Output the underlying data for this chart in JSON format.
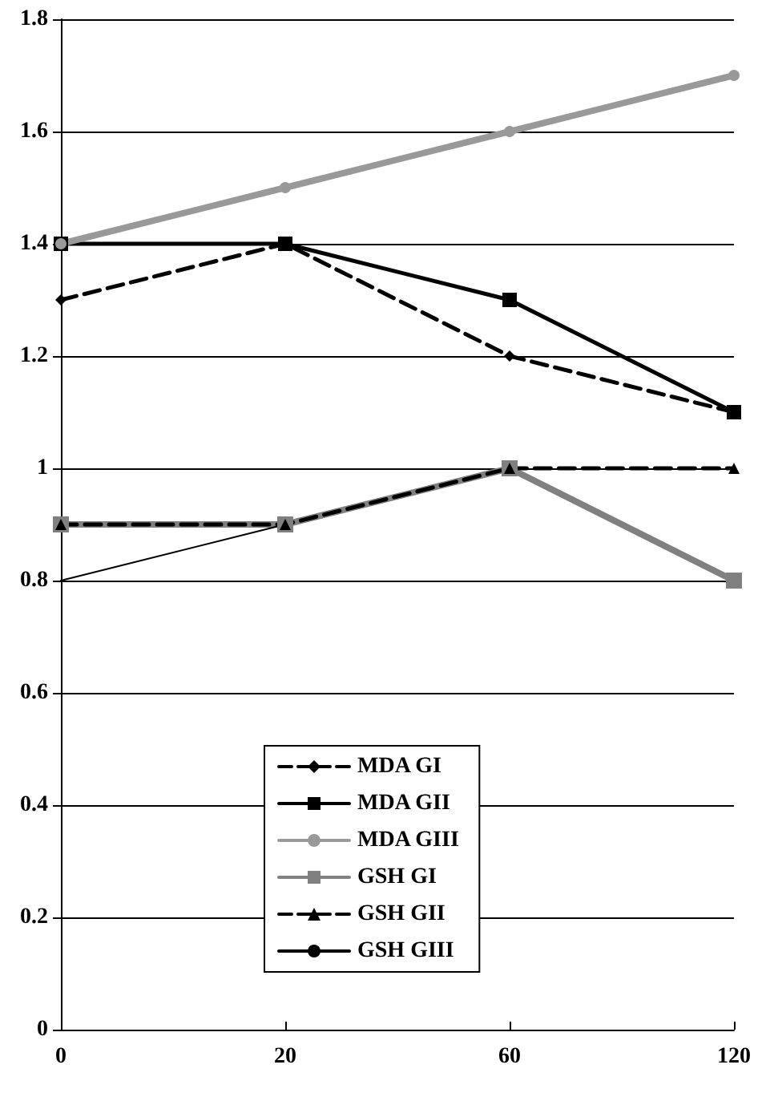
{
  "chart_data": {
    "type": "line",
    "categories": [
      "0",
      "20",
      "60",
      "120"
    ],
    "series": [
      {
        "name": "MDA GI",
        "color": "#000000",
        "values": [
          1.3,
          1.4,
          1.2,
          1.1
        ],
        "marker": "diamond",
        "line_style": "dashed"
      },
      {
        "name": "MDA GII",
        "color": "#000000",
        "values": [
          1.4,
          1.4,
          1.3,
          1.1
        ],
        "marker": "square",
        "line_style": "solid"
      },
      {
        "name": "MDA GIII",
        "color": "#999999",
        "values": [
          1.4,
          1.5,
          1.6,
          1.7
        ],
        "marker": "circle",
        "line_style": "solid"
      },
      {
        "name": "GSH GI",
        "color": "#808080",
        "values": [
          0.9,
          0.9,
          1.0,
          0.8
        ],
        "marker": "square",
        "line_style": "solid"
      },
      {
        "name": "GSH GII",
        "color": "#000000",
        "values": [
          0.9,
          0.9,
          1.0,
          1.0
        ],
        "marker": "triangle",
        "line_style": "dashed"
      },
      {
        "name": "GSH GIII",
        "color": "#000000",
        "values": [
          0.8,
          0.9,
          null,
          null
        ],
        "marker": "none",
        "line_style": "solid"
      }
    ],
    "ylim": [
      0,
      1.8
    ],
    "yticks": [
      0,
      0.2,
      0.4,
      0.6,
      0.8,
      1,
      1.2,
      1.4,
      1.6,
      1.8
    ],
    "grid": "y",
    "legend": "bottom"
  }
}
